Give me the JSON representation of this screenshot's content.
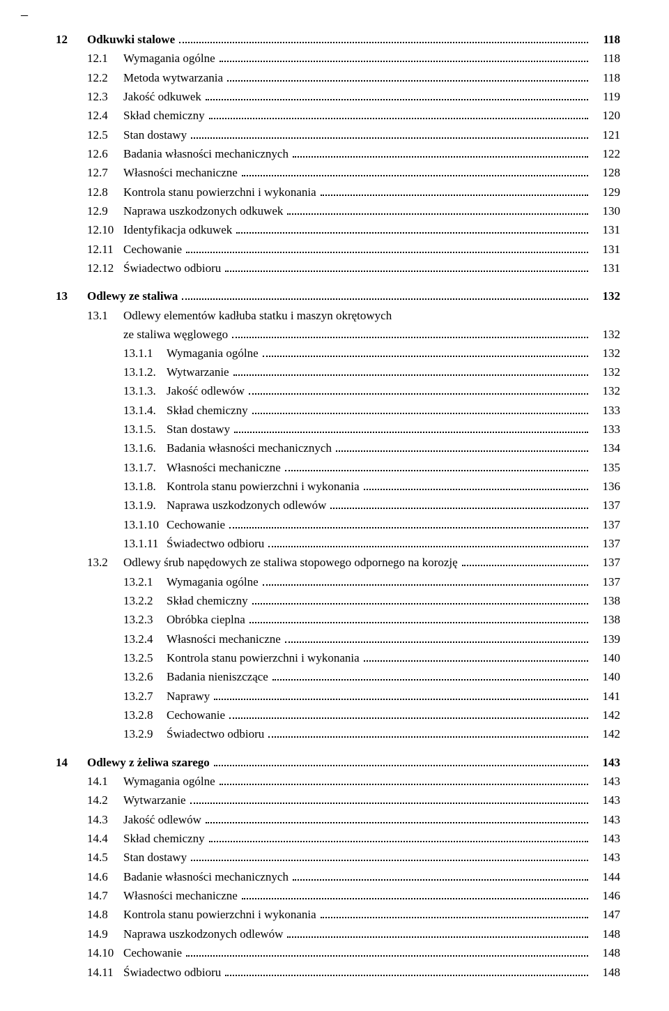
{
  "toc": [
    {
      "level": 1,
      "num": "12",
      "title": "Odkuwki stalowe",
      "page": "118"
    },
    {
      "level": 2,
      "num": "12.1",
      "title": "Wymagania ogólne",
      "page": "118"
    },
    {
      "level": 2,
      "num": "12.2",
      "title": "Metoda wytwarzania",
      "page": "118"
    },
    {
      "level": 2,
      "num": "12.3",
      "title": "Jakość odkuwek",
      "page": "119"
    },
    {
      "level": 2,
      "num": "12.4",
      "title": "Skład chemiczny",
      "page": "120"
    },
    {
      "level": 2,
      "num": "12.5",
      "title": "Stan dostawy",
      "page": "121"
    },
    {
      "level": 2,
      "num": "12.6",
      "title": "Badania własności mechanicznych",
      "page": "122"
    },
    {
      "level": 2,
      "num": "12.7",
      "title": "Własności mechaniczne",
      "page": "128"
    },
    {
      "level": 2,
      "num": "12.8",
      "title": "Kontrola stanu powierzchni i wykonania",
      "page": "129"
    },
    {
      "level": 2,
      "num": "12.9",
      "title": "Naprawa uszkodzonych odkuwek",
      "page": "130"
    },
    {
      "level": 2,
      "num": "12.10",
      "title": "Identyfikacja odkuwek",
      "page": "131"
    },
    {
      "level": 2,
      "num": "12.11",
      "title": "Cechowanie",
      "page": "131"
    },
    {
      "level": 2,
      "num": "12.12",
      "title": "Świadectwo odbioru",
      "page": "131"
    },
    {
      "level": 1,
      "num": "13",
      "title": "Odlewy ze staliwa",
      "page": "132"
    },
    {
      "level": 2,
      "num": "13.1",
      "title": "Odlewy elementów kadłuba statku i maszyn okrętowych",
      "page": null,
      "continuation": "ze staliwa węglowego",
      "cont_page": "132"
    },
    {
      "level": 3,
      "num": "13.1.1",
      "title": "Wymagania ogólne",
      "page": "132"
    },
    {
      "level": 3,
      "num": "13.1.2.",
      "title": "Wytwarzanie",
      "page": "132"
    },
    {
      "level": 3,
      "num": "13.1.3.",
      "title": "Jakość odlewów",
      "page": "132"
    },
    {
      "level": 3,
      "num": "13.1.4.",
      "title": "Skład chemiczny",
      "page": "133"
    },
    {
      "level": 3,
      "num": "13.1.5.",
      "title": "Stan dostawy",
      "page": "133"
    },
    {
      "level": 3,
      "num": "13.1.6.",
      "title": "Badania własności mechanicznych",
      "page": "134"
    },
    {
      "level": 3,
      "num": "13.1.7.",
      "title": "Własności mechaniczne",
      "page": "135"
    },
    {
      "level": 3,
      "num": "13.1.8.",
      "title": "Kontrola stanu powierzchni i wykonania",
      "page": "136"
    },
    {
      "level": 3,
      "num": "13.1.9.",
      "title": "Naprawa uszkodzonych odlewów",
      "page": "137"
    },
    {
      "level": 3,
      "num": "13.1.10",
      "title": "Cechowanie",
      "page": "137"
    },
    {
      "level": 3,
      "num": "13.1.11",
      "title": "Świadectwo odbioru",
      "page": "137"
    },
    {
      "level": 2,
      "num": "13.2",
      "title": "Odlewy śrub napędowych ze staliwa stopowego odpornego na korozję",
      "page": "137"
    },
    {
      "level": 3,
      "num": "13.2.1",
      "title": "Wymagania ogólne",
      "page": "137"
    },
    {
      "level": 3,
      "num": "13.2.2",
      "title": "Skład chemiczny",
      "page": "138"
    },
    {
      "level": 3,
      "num": "13.2.3",
      "title": "Obróbka cieplna",
      "page": "138"
    },
    {
      "level": 3,
      "num": "13.2.4",
      "title": "Własności mechaniczne",
      "page": "139"
    },
    {
      "level": 3,
      "num": "13.2.5",
      "title": "Kontrola stanu powierzchni i wykonania",
      "page": "140"
    },
    {
      "level": 3,
      "num": "13.2.6",
      "title": "Badania nieniszczące",
      "page": "140"
    },
    {
      "level": 3,
      "num": "13.2.7",
      "title": "Naprawy",
      "page": "141"
    },
    {
      "level": 3,
      "num": "13.2.8",
      "title": "Cechowanie",
      "page": "142"
    },
    {
      "level": 3,
      "num": "13.2.9",
      "title": "Świadectwo odbioru",
      "page": "142"
    },
    {
      "level": 1,
      "num": "14",
      "title": "Odlewy z żeliwa szarego",
      "page": "143"
    },
    {
      "level": 2,
      "num": "14.1",
      "title": "Wymagania ogólne",
      "page": "143"
    },
    {
      "level": 2,
      "num": "14.2",
      "title": "Wytwarzanie",
      "page": "143"
    },
    {
      "level": 2,
      "num": "14.3",
      "title": "Jakość odlewów",
      "page": "143"
    },
    {
      "level": 2,
      "num": "14.4",
      "title": "Skład chemiczny",
      "page": "143"
    },
    {
      "level": 2,
      "num": "14.5",
      "title": "Stan dostawy",
      "page": "143"
    },
    {
      "level": 2,
      "num": "14.6",
      "title": "Badanie własności mechanicznych",
      "page": "144"
    },
    {
      "level": 2,
      "num": "14.7",
      "title": "Własności mechaniczne",
      "page": "146"
    },
    {
      "level": 2,
      "num": "14.8",
      "title": "Kontrola stanu powierzchni i wykonania",
      "page": "147"
    },
    {
      "level": 2,
      "num": "14.9",
      "title": "Naprawa uszkodzonych odlewów",
      "page": "148"
    },
    {
      "level": 2,
      "num": "14.10",
      "title": "Cechowanie",
      "page": "148"
    },
    {
      "level": 2,
      "num": "14.11",
      "title": "Świadectwo odbioru",
      "page": "148"
    }
  ]
}
